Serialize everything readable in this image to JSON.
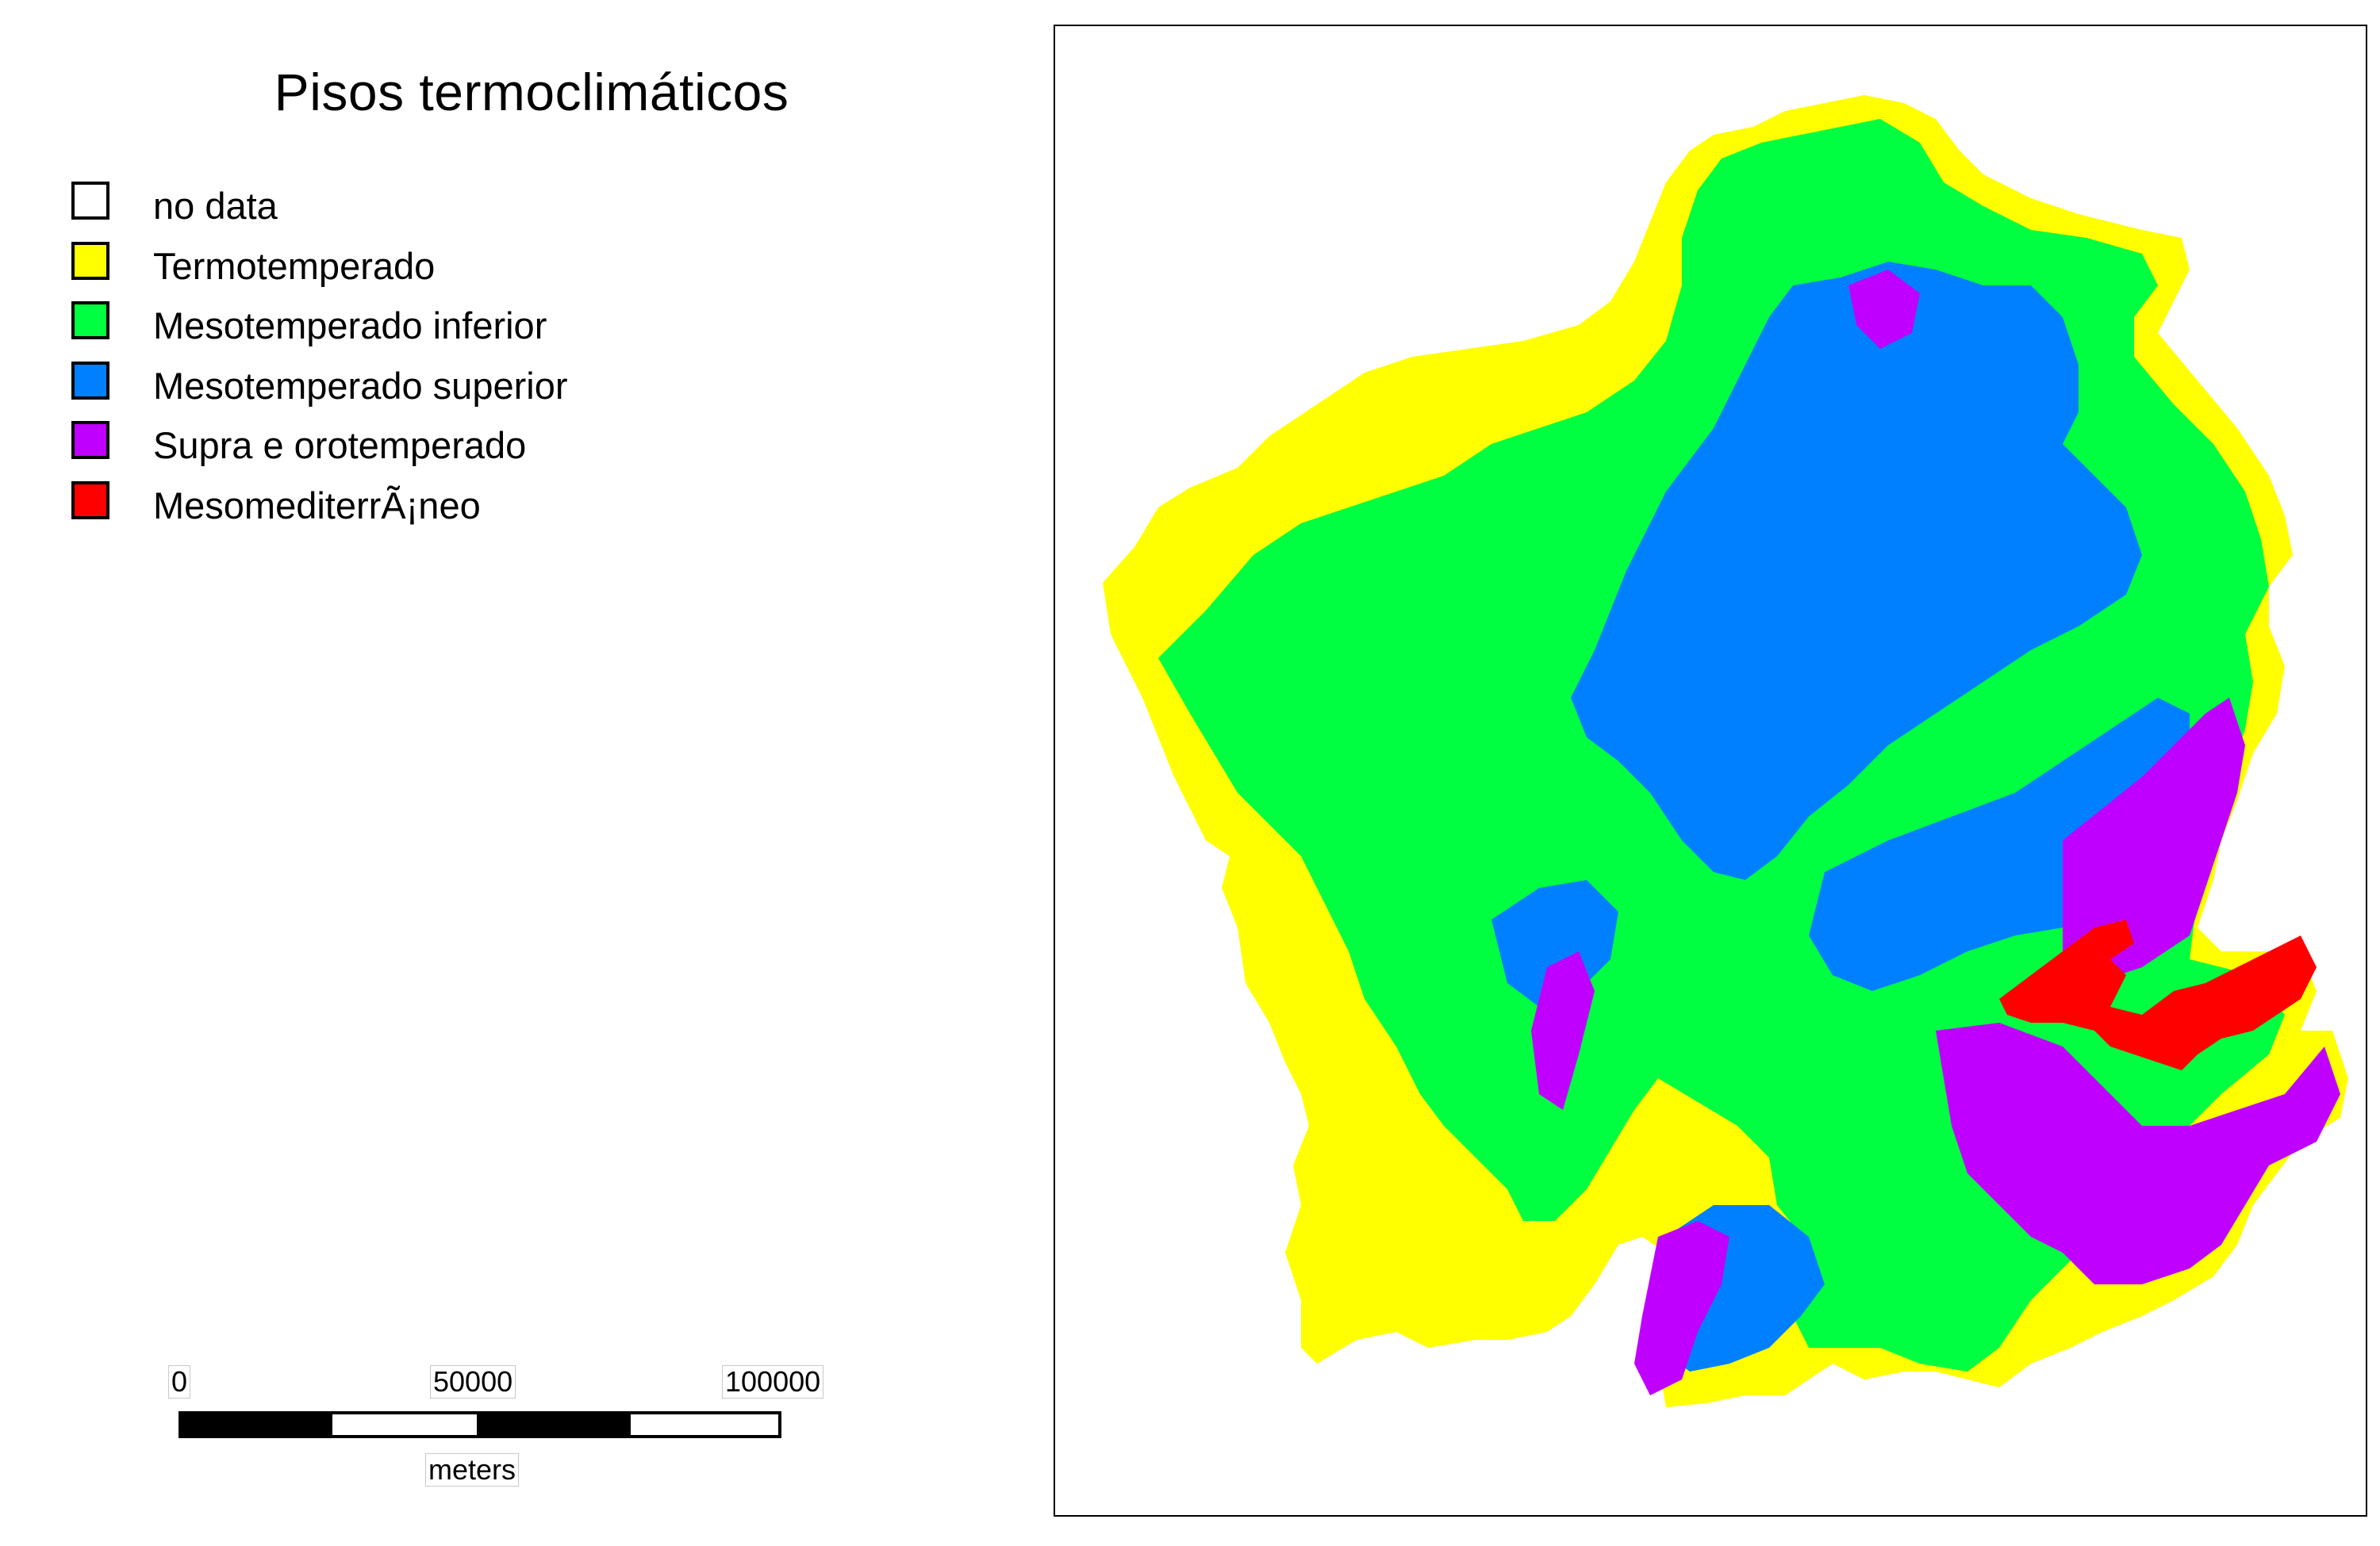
{
  "map": {
    "title": "Pisos termoclimáticos",
    "legend": [
      {
        "label": "no data",
        "color": "#ffffff"
      },
      {
        "label": "Termotemperado",
        "color": "#ffff00"
      },
      {
        "label": "Mesotemperado inferior",
        "color": "#00ff40"
      },
      {
        "label": "Mesotemperado superior",
        "color": "#0080ff"
      },
      {
        "label": "Supra e orotemperado",
        "color": "#bf00ff"
      },
      {
        "label": "MesomediterrÃ¡neo",
        "color": "#ff0000"
      }
    ],
    "scale": {
      "ticks": [
        "0",
        "50000",
        "100000"
      ],
      "unit": "meters"
    }
  }
}
